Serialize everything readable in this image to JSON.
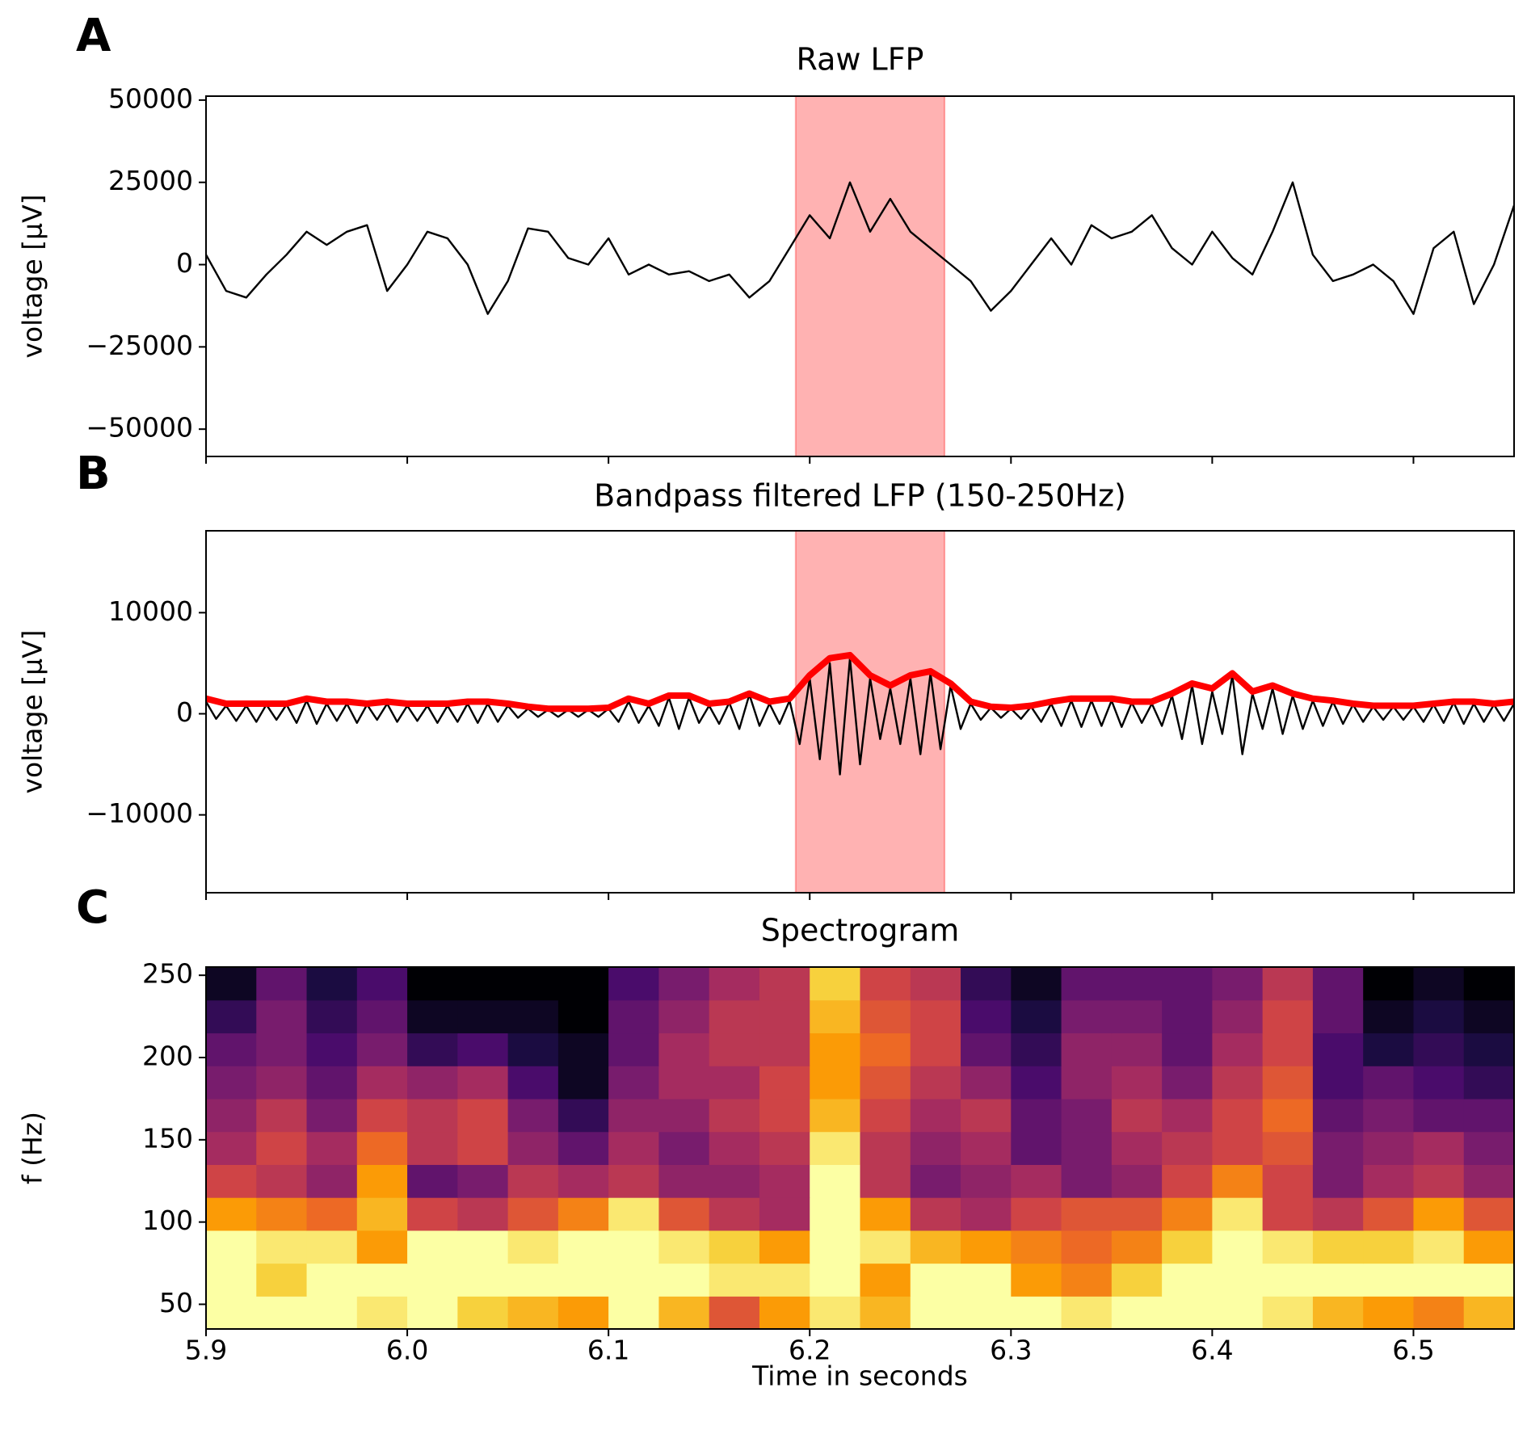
{
  "chart_data": [
    {
      "type": "line",
      "panel_label": "A",
      "title": "Raw LFP",
      "ylabel": "voltage [μV]",
      "xlim": [
        5.9,
        6.55
      ],
      "ylim": [
        -58300,
        51200
      ],
      "xticks": [
        5.9,
        6.0,
        6.1,
        6.2,
        6.3,
        6.4,
        6.5
      ],
      "yticks": [
        {
          "value": -50000,
          "label": "−50000"
        },
        {
          "value": -25000,
          "label": "−25000"
        },
        0,
        25000,
        50000
      ],
      "highlight": [
        6.193,
        6.267
      ],
      "highlight_color": "#ff0000",
      "series": [
        {
          "color": "#000000",
          "x": [
            5.9,
            5.91,
            5.92,
            5.93,
            5.94,
            5.95,
            5.96,
            5.97,
            5.98,
            5.99,
            6.0,
            6.01,
            6.02,
            6.03,
            6.04,
            6.05,
            6.06,
            6.07,
            6.08,
            6.09,
            6.1,
            6.11,
            6.12,
            6.13,
            6.14,
            6.15,
            6.16,
            6.17,
            6.18,
            6.19,
            6.2,
            6.21,
            6.22,
            6.23,
            6.24,
            6.25,
            6.26,
            6.27,
            6.28,
            6.29,
            6.3,
            6.31,
            6.32,
            6.33,
            6.34,
            6.35,
            6.36,
            6.37,
            6.38,
            6.39,
            6.4,
            6.41,
            6.42,
            6.43,
            6.44,
            6.45,
            6.46,
            6.47,
            6.48,
            6.49,
            6.5,
            6.51,
            6.52,
            6.53,
            6.54,
            6.55
          ],
          "values": [
            3000,
            -8000,
            -10000,
            -3000,
            3000,
            10000,
            6000,
            10000,
            12000,
            -8000,
            0,
            10000,
            8000,
            0,
            -15000,
            -5000,
            11000,
            10000,
            2000,
            0,
            8000,
            -3000,
            0,
            -3000,
            -2000,
            -5000,
            -3000,
            -10000,
            -5000,
            5000,
            15000,
            8000,
            25000,
            10000,
            20000,
            10000,
            5000,
            0,
            -5000,
            -14000,
            -8000,
            0,
            8000,
            0,
            12000,
            8000,
            10000,
            15000,
            5000,
            0,
            10000,
            2000,
            -3000,
            10000,
            25000,
            3000,
            -5000,
            -3000,
            0,
            -5000,
            -15000,
            5000,
            10000,
            -12000,
            0,
            18000
          ]
        }
      ]
    },
    {
      "type": "line",
      "panel_label": "B",
      "title": "Bandpass filtered LFP (150-250Hz)",
      "ylabel": "voltage [μV]",
      "xlim": [
        5.9,
        6.55
      ],
      "ylim": [
        -17700,
        18100
      ],
      "xticks": [
        5.9,
        6.0,
        6.1,
        6.2,
        6.3,
        6.4,
        6.5
      ],
      "yticks": [
        {
          "value": -10000,
          "label": "−10000"
        },
        0,
        10000
      ],
      "highlight": [
        6.193,
        6.267
      ],
      "highlight_color": "#ff0000",
      "series": [
        {
          "color": "#000000",
          "x": [
            5.9,
            5.905,
            5.91,
            5.915,
            5.92,
            5.925,
            5.93,
            5.935,
            5.94,
            5.945,
            5.95,
            5.955,
            5.96,
            5.965,
            5.97,
            5.975,
            5.98,
            5.985,
            5.99,
            5.995,
            6.0,
            6.005,
            6.01,
            6.015,
            6.02,
            6.025,
            6.03,
            6.035,
            6.04,
            6.045,
            6.05,
            6.055,
            6.06,
            6.065,
            6.07,
            6.075,
            6.08,
            6.085,
            6.09,
            6.095,
            6.1,
            6.105,
            6.11,
            6.115,
            6.12,
            6.125,
            6.13,
            6.135,
            6.14,
            6.145,
            6.15,
            6.155,
            6.16,
            6.165,
            6.17,
            6.175,
            6.18,
            6.185,
            6.19,
            6.195,
            6.2,
            6.205,
            6.21,
            6.215,
            6.22,
            6.225,
            6.23,
            6.235,
            6.24,
            6.245,
            6.25,
            6.255,
            6.26,
            6.265,
            6.27,
            6.275,
            6.28,
            6.285,
            6.29,
            6.295,
            6.3,
            6.305,
            6.31,
            6.315,
            6.32,
            6.325,
            6.33,
            6.335,
            6.34,
            6.345,
            6.35,
            6.355,
            6.36,
            6.365,
            6.37,
            6.375,
            6.38,
            6.385,
            6.39,
            6.395,
            6.4,
            6.405,
            6.41,
            6.415,
            6.42,
            6.425,
            6.43,
            6.435,
            6.44,
            6.445,
            6.45,
            6.455,
            6.46,
            6.465,
            6.47,
            6.475,
            6.48,
            6.485,
            6.49,
            6.495,
            6.5,
            6.505,
            6.51,
            6.515,
            6.52,
            6.525,
            6.53,
            6.535,
            6.54,
            6.545,
            6.55
          ],
          "values": [
            1200,
            -500,
            800,
            -700,
            800,
            -800,
            900,
            -600,
            900,
            -900,
            1300,
            -1000,
            1000,
            -700,
            1000,
            -900,
            900,
            -600,
            1000,
            -800,
            800,
            -700,
            800,
            -900,
            800,
            -800,
            1000,
            -900,
            1000,
            -800,
            800,
            -400,
            500,
            -300,
            400,
            -300,
            400,
            -300,
            400,
            -300,
            500,
            -800,
            1200,
            -900,
            800,
            -1200,
            1600,
            -1500,
            1600,
            -900,
            800,
            -1000,
            1100,
            -1500,
            1900,
            -1200,
            1000,
            -1000,
            1300,
            -3000,
            3500,
            -4500,
            5000,
            -6000,
            5500,
            -5000,
            3500,
            -2500,
            2500,
            -3000,
            3500,
            -4000,
            4000,
            -3500,
            2800,
            -1500,
            1000,
            -600,
            600,
            -400,
            500,
            -500,
            700,
            -800,
            1000,
            -1200,
            1300,
            -1300,
            1300,
            -1200,
            1300,
            -1300,
            1100,
            -900,
            1000,
            -1200,
            1800,
            -2500,
            2800,
            -3000,
            2200,
            -2000,
            3800,
            -4000,
            2000,
            -1500,
            2500,
            -2000,
            1800,
            -1500,
            1300,
            -1200,
            1200,
            -1000,
            900,
            -800,
            700,
            -600,
            700,
            -600,
            700,
            -800,
            900,
            -900,
            1100,
            -1000,
            1000,
            -800,
            900,
            -700,
            1000
          ]
        },
        {
          "color": "#ff0000",
          "x": [
            5.9,
            5.91,
            5.92,
            5.93,
            5.94,
            5.95,
            5.96,
            5.97,
            5.98,
            5.99,
            6.0,
            6.01,
            6.02,
            6.03,
            6.04,
            6.05,
            6.06,
            6.07,
            6.08,
            6.09,
            6.1,
            6.11,
            6.12,
            6.13,
            6.14,
            6.15,
            6.16,
            6.17,
            6.18,
            6.19,
            6.2,
            6.21,
            6.22,
            6.23,
            6.24,
            6.25,
            6.26,
            6.27,
            6.28,
            6.29,
            6.3,
            6.31,
            6.32,
            6.33,
            6.34,
            6.35,
            6.36,
            6.37,
            6.38,
            6.39,
            6.4,
            6.41,
            6.42,
            6.43,
            6.44,
            6.45,
            6.46,
            6.47,
            6.48,
            6.49,
            6.5,
            6.51,
            6.52,
            6.53,
            6.54,
            6.55
          ],
          "values": [
            1500,
            1000,
            1000,
            1000,
            1000,
            1500,
            1200,
            1200,
            1000,
            1200,
            1000,
            1000,
            1000,
            1200,
            1200,
            1000,
            700,
            500,
            500,
            500,
            600,
            1500,
            1000,
            1800,
            1800,
            1000,
            1200,
            2000,
            1200,
            1500,
            3800,
            5500,
            5800,
            3800,
            2800,
            3800,
            4200,
            3000,
            1200,
            700,
            600,
            800,
            1200,
            1500,
            1500,
            1500,
            1200,
            1200,
            2000,
            3000,
            2500,
            4000,
            2200,
            2800,
            2000,
            1500,
            1300,
            1000,
            800,
            800,
            800,
            1000,
            1200,
            1200,
            1000,
            1200
          ]
        }
      ]
    },
    {
      "type": "heatmap",
      "panel_label": "C",
      "title": "Spectrogram",
      "ylabel": "f (Hz)",
      "xlabel": "Time in seconds",
      "xlim": [
        5.9,
        6.55
      ],
      "ylim": [
        35,
        255
      ],
      "xticks": [
        5.9,
        {
          "value": 6.0,
          "label": "6.0"
        },
        6.1,
        6.2,
        6.3,
        6.4,
        6.5
      ],
      "yticks": [
        50,
        100,
        150,
        200,
        250
      ],
      "colormap": [
        "#000004",
        "#1b0c41",
        "#4a0c6b",
        "#781c6d",
        "#a52c60",
        "#cf4446",
        "#ed6925",
        "#fb9b06",
        "#f7d13d",
        "#fcffa4"
      ],
      "xbins": [
        5.9,
        5.925,
        5.95,
        5.975,
        6.0,
        6.025,
        6.05,
        6.075,
        6.1,
        6.125,
        6.15,
        6.175,
        6.2,
        6.225,
        6.25,
        6.275,
        6.3,
        6.325,
        6.35,
        6.375,
        6.4,
        6.425,
        6.45,
        6.475,
        6.5,
        6.525,
        6.55
      ],
      "ybins": [
        35,
        55,
        75,
        95,
        115,
        135,
        155,
        175,
        195,
        215,
        235,
        255
      ],
      "z": [
        [
          0.95,
          0.95,
          0.95,
          0.9,
          0.95,
          0.85,
          0.8,
          0.75,
          0.95,
          0.8,
          0.6,
          0.75,
          0.9,
          0.8,
          0.95,
          0.95,
          0.95,
          0.9,
          0.95,
          0.95,
          0.95,
          0.9,
          0.8,
          0.75,
          0.7,
          0.8
        ],
        [
          0.95,
          0.85,
          0.95,
          0.95,
          0.95,
          0.95,
          0.95,
          0.95,
          0.95,
          0.95,
          0.9,
          0.9,
          0.95,
          0.75,
          0.95,
          0.95,
          0.75,
          0.7,
          0.85,
          0.95,
          0.95,
          0.95,
          0.95,
          0.95,
          0.95,
          0.95
        ],
        [
          0.95,
          0.9,
          0.9,
          0.75,
          0.95,
          0.95,
          0.9,
          0.95,
          0.95,
          0.9,
          0.85,
          0.75,
          0.95,
          0.9,
          0.8,
          0.75,
          0.7,
          0.65,
          0.7,
          0.85,
          0.95,
          0.9,
          0.85,
          0.85,
          0.9,
          0.75
        ],
        [
          0.75,
          0.7,
          0.65,
          0.8,
          0.55,
          0.5,
          0.6,
          0.7,
          0.9,
          0.6,
          0.5,
          0.45,
          0.95,
          0.75,
          0.5,
          0.45,
          0.55,
          0.6,
          0.6,
          0.7,
          0.9,
          0.55,
          0.5,
          0.6,
          0.75,
          0.6
        ],
        [
          0.55,
          0.5,
          0.4,
          0.75,
          0.3,
          0.35,
          0.5,
          0.45,
          0.5,
          0.4,
          0.4,
          0.45,
          0.95,
          0.5,
          0.35,
          0.4,
          0.45,
          0.35,
          0.4,
          0.55,
          0.7,
          0.55,
          0.35,
          0.45,
          0.5,
          0.4
        ],
        [
          0.45,
          0.55,
          0.45,
          0.65,
          0.5,
          0.55,
          0.4,
          0.3,
          0.45,
          0.35,
          0.45,
          0.5,
          0.9,
          0.5,
          0.4,
          0.45,
          0.3,
          0.35,
          0.45,
          0.5,
          0.55,
          0.6,
          0.35,
          0.4,
          0.45,
          0.35
        ],
        [
          0.4,
          0.5,
          0.35,
          0.55,
          0.5,
          0.55,
          0.35,
          0.2,
          0.4,
          0.4,
          0.5,
          0.55,
          0.8,
          0.55,
          0.45,
          0.5,
          0.3,
          0.35,
          0.5,
          0.45,
          0.55,
          0.65,
          0.3,
          0.35,
          0.3,
          0.3
        ],
        [
          0.35,
          0.4,
          0.3,
          0.45,
          0.4,
          0.45,
          0.25,
          0.1,
          0.35,
          0.45,
          0.45,
          0.55,
          0.75,
          0.6,
          0.5,
          0.4,
          0.25,
          0.4,
          0.45,
          0.35,
          0.5,
          0.6,
          0.25,
          0.3,
          0.25,
          0.2
        ],
        [
          0.3,
          0.35,
          0.25,
          0.35,
          0.2,
          0.25,
          0.15,
          0.1,
          0.3,
          0.45,
          0.5,
          0.5,
          0.75,
          0.65,
          0.55,
          0.3,
          0.2,
          0.4,
          0.4,
          0.3,
          0.45,
          0.55,
          0.25,
          0.15,
          0.2,
          0.15
        ],
        [
          0.2,
          0.35,
          0.2,
          0.3,
          0.1,
          0.1,
          0.1,
          0.05,
          0.3,
          0.4,
          0.5,
          0.5,
          0.8,
          0.6,
          0.55,
          0.25,
          0.15,
          0.35,
          0.35,
          0.3,
          0.4,
          0.55,
          0.3,
          0.1,
          0.15,
          0.1
        ],
        [
          0.1,
          0.3,
          0.15,
          0.25,
          0.05,
          0.05,
          0.05,
          0.05,
          0.25,
          0.35,
          0.45,
          0.5,
          0.85,
          0.55,
          0.5,
          0.2,
          0.1,
          0.3,
          0.3,
          0.3,
          0.35,
          0.5,
          0.3,
          0.05,
          0.1,
          0.05
        ]
      ]
    }
  ]
}
